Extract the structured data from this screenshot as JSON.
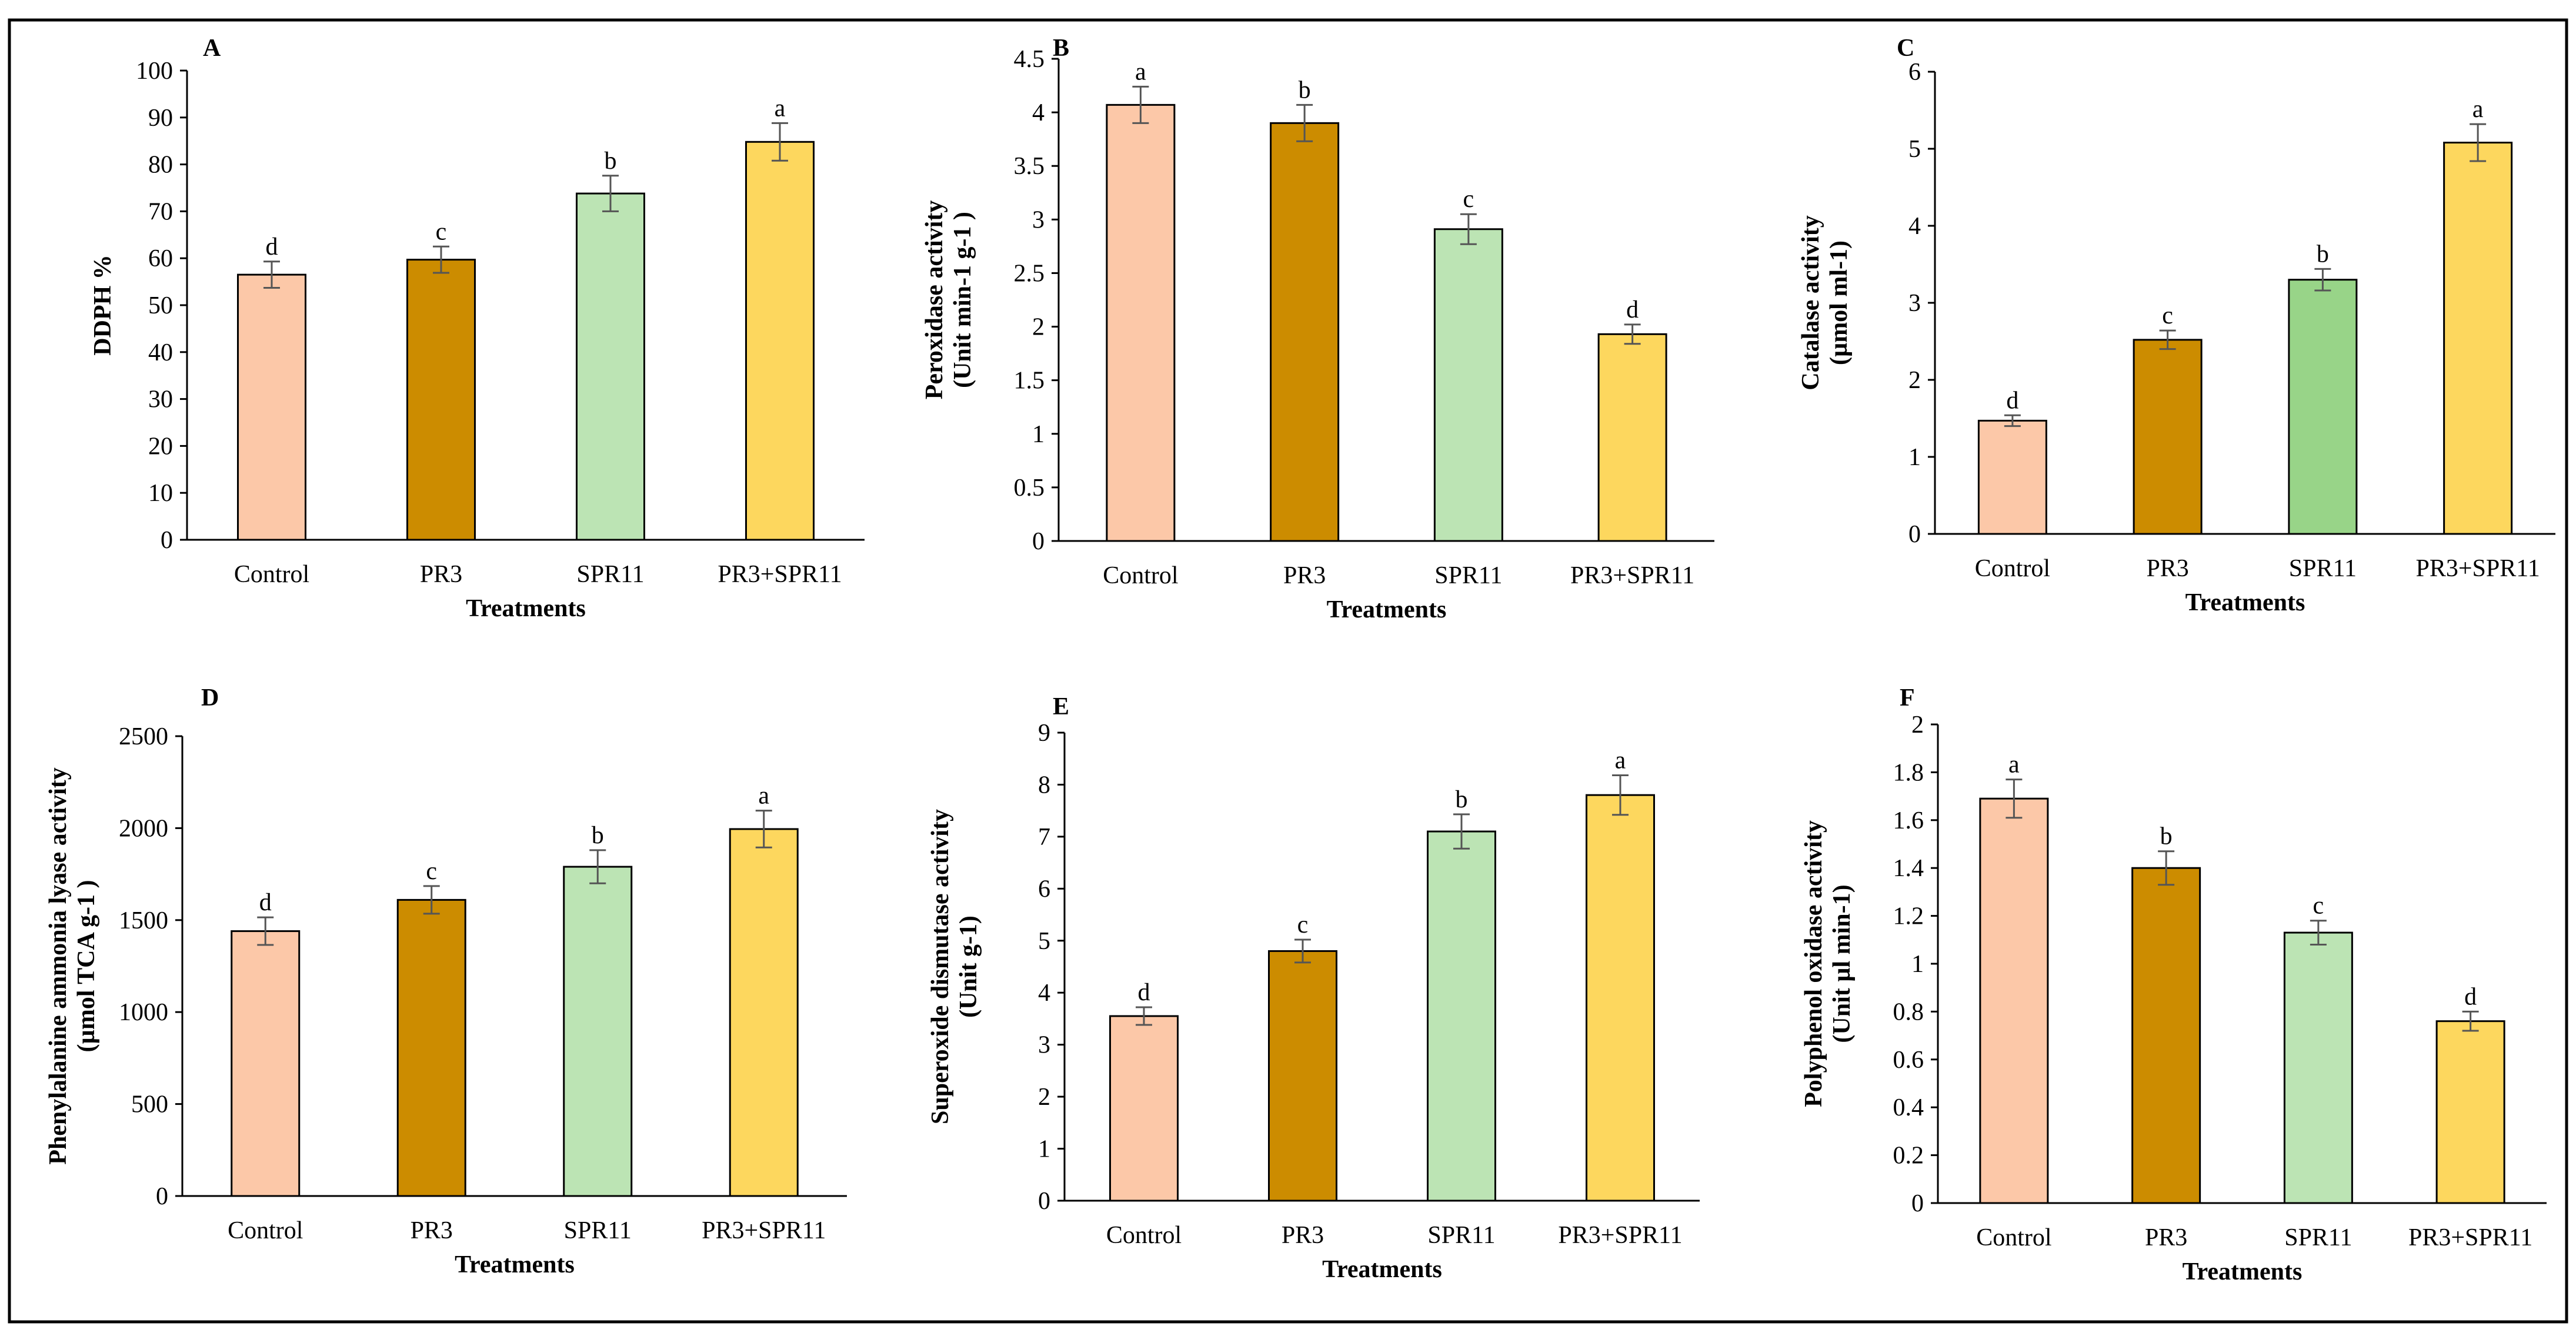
{
  "chart_data": [
    {
      "panel": "A",
      "type": "bar",
      "categories": [
        "Control",
        "PR3",
        "SPR11",
        "PR3+SPR11"
      ],
      "values": [
        56.5,
        59.7,
        73.8,
        84.8
      ],
      "errors": [
        2.8,
        2.8,
        3.8,
        4.0
      ],
      "significance": [
        "d",
        "c",
        "b",
        "a"
      ],
      "colors": [
        "#fcc8a8",
        "#cc8c00",
        "#bce4b4",
        "#fdd75e"
      ],
      "xlabel": "Treatments",
      "ylabel": [
        "DDPH %"
      ],
      "ylim": [
        0,
        100
      ],
      "yticks": [
        0,
        10,
        20,
        30,
        40,
        50,
        60,
        70,
        80,
        90,
        100
      ],
      "ytick_labels": [
        "0",
        "10",
        "20",
        "30",
        "40",
        "50",
        "60",
        "70",
        "80",
        "90",
        "100"
      ]
    },
    {
      "panel": "B",
      "type": "bar",
      "categories": [
        "Control",
        "PR3",
        "SPR11",
        "PR3+SPR11"
      ],
      "values": [
        4.07,
        3.9,
        2.91,
        1.93
      ],
      "errors": [
        0.17,
        0.17,
        0.14,
        0.09
      ],
      "significance": [
        "a",
        "b",
        "c",
        "d"
      ],
      "colors": [
        "#fcc8a8",
        "#cc8c00",
        "#bce4b4",
        "#fdd75e"
      ],
      "xlabel": "Treatments",
      "ylabel": [
        "Peroxidase activity",
        "(Unit min-1 g-1 )"
      ],
      "ylim": [
        0,
        4.5
      ],
      "yticks": [
        0,
        0.5,
        1,
        1.5,
        2,
        2.5,
        3,
        3.5,
        4,
        4.5
      ],
      "ytick_labels": [
        "0",
        "0.5",
        "1",
        "1.5",
        "2",
        "2.5",
        "3",
        "3.5",
        "4",
        "4.5"
      ]
    },
    {
      "panel": "C",
      "type": "bar",
      "categories": [
        "Control",
        "PR3",
        "SPR11",
        "PR3+SPR11"
      ],
      "values": [
        1.47,
        2.52,
        3.3,
        5.08
      ],
      "errors": [
        0.07,
        0.12,
        0.14,
        0.24
      ],
      "significance": [
        "d",
        "c",
        "b",
        "a"
      ],
      "colors": [
        "#fcc8a8",
        "#cc8c00",
        "#98d488",
        "#fdd75e"
      ],
      "xlabel": "Treatments",
      "ylabel": [
        "Catalase activity",
        "(µmol ml-1)"
      ],
      "ylim": [
        0,
        6
      ],
      "yticks": [
        0,
        1,
        2,
        3,
        4,
        5,
        6
      ],
      "ytick_labels": [
        "0",
        "1",
        "2",
        "3",
        "4",
        "5",
        "6"
      ]
    },
    {
      "panel": "D",
      "type": "bar",
      "categories": [
        "Control",
        "PR3",
        "SPR11",
        "PR3+SPR11"
      ],
      "values": [
        1440,
        1610,
        1790,
        1995
      ],
      "errors": [
        75,
        75,
        90,
        100
      ],
      "significance": [
        "d",
        "c",
        "b",
        "a"
      ],
      "colors": [
        "#fcc8a8",
        "#cc8c00",
        "#bce4b4",
        "#fdd75e"
      ],
      "xlabel": "Treatments",
      "ylabel": [
        "Phenylalanine ammonia lyase activity",
        "(µmol TCA g-1 )"
      ],
      "ylim": [
        0,
        2500
      ],
      "yticks": [
        0,
        500,
        1000,
        1500,
        2000,
        2500
      ],
      "ytick_labels": [
        "0",
        "500",
        "1000",
        "1500",
        "2000",
        "2500"
      ]
    },
    {
      "panel": "E",
      "type": "bar",
      "categories": [
        "Control",
        "PR3",
        "SPR11",
        "PR3+SPR11"
      ],
      "values": [
        3.55,
        4.8,
        7.1,
        7.8
      ],
      "errors": [
        0.17,
        0.22,
        0.33,
        0.38
      ],
      "significance": [
        "d",
        "c",
        "b",
        "a"
      ],
      "colors": [
        "#fcc8a8",
        "#cc8c00",
        "#bce4b4",
        "#fdd75e"
      ],
      "xlabel": "Treatments",
      "ylabel": [
        "Superoxide dismutase activity",
        "(Unit g-1)"
      ],
      "ylim": [
        0,
        9
      ],
      "yticks": [
        0,
        1,
        2,
        3,
        4,
        5,
        6,
        7,
        8,
        9
      ],
      "ytick_labels": [
        "0",
        "1",
        "2",
        "3",
        "4",
        "5",
        "6",
        "7",
        "8",
        "9"
      ]
    },
    {
      "panel": "F",
      "type": "bar",
      "categories": [
        "Control",
        "PR3",
        "SPR11",
        "PR3+SPR11"
      ],
      "values": [
        1.69,
        1.4,
        1.13,
        0.76
      ],
      "errors": [
        0.08,
        0.07,
        0.05,
        0.04
      ],
      "significance": [
        "a",
        "b",
        "c",
        "d"
      ],
      "colors": [
        "#fcc8a8",
        "#cc8c00",
        "#bce4b4",
        "#fdd75e"
      ],
      "xlabel": "Treatments",
      "ylabel": [
        "Polyphenol oxidase activity",
        "(Unit µl min-1)"
      ],
      "ylim": [
        0,
        2
      ],
      "yticks": [
        0,
        0.2,
        0.4,
        0.6,
        0.8,
        1,
        1.2,
        1.4,
        1.6,
        1.8,
        2
      ],
      "ytick_labels": [
        "0",
        "0.2",
        "0.4",
        "0.6",
        "0.8",
        "1",
        "1.2",
        "1.4",
        "1.6",
        "1.8",
        "2"
      ]
    }
  ]
}
